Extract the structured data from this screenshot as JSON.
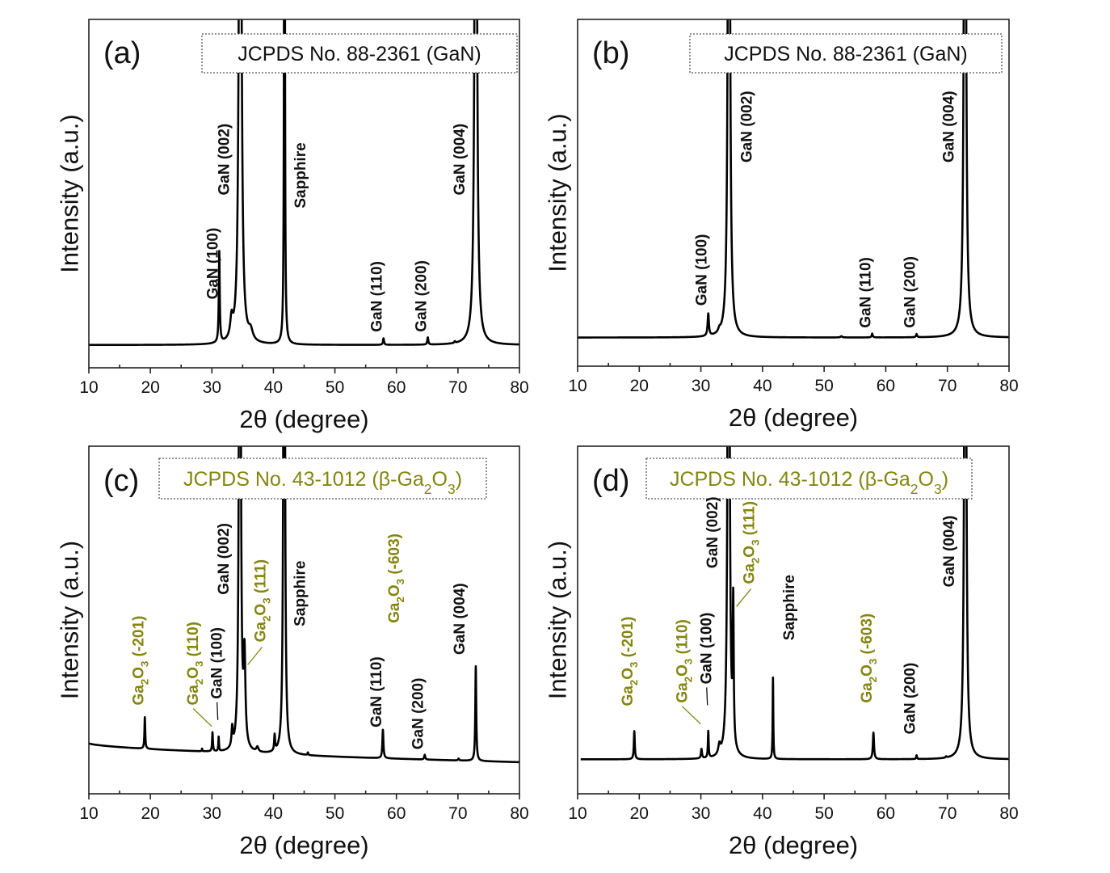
{
  "figure": {
    "colors": {
      "gan": "#111111",
      "ga2o3": "#858510",
      "axis": "#222222"
    },
    "xlabel": "2θ (degree)",
    "ylabel": "Intensity (a.u.)"
  },
  "chart_data": [
    {
      "type": "line",
      "panel": "(a)",
      "title": "",
      "reference": {
        "text": "JCPDS No. 88-2361 (GaN)",
        "color_key": "gan"
      },
      "xlabel": "2θ (degree)",
      "ylabel": "Intensity (a.u.)",
      "xlim": [
        10,
        80
      ],
      "xticks": [
        10,
        20,
        30,
        40,
        50,
        60,
        70,
        80
      ],
      "minor_xticks": [
        15,
        25,
        35,
        45,
        55,
        65,
        75
      ],
      "ylim": [
        -0.07,
        1.0
      ],
      "y_ticks_shown": false,
      "baseline": {
        "start": 0,
        "end": 0
      },
      "peaks": [
        {
          "x": 31.2,
          "height": 0.28,
          "width": 0.18
        },
        {
          "x": 33.2,
          "height": 0.06,
          "width": 0.5
        },
        {
          "x": 34.6,
          "height": 3.0,
          "width": 0.35
        },
        {
          "x": 36.3,
          "height": 0.03,
          "width": 0.8
        },
        {
          "x": 41.8,
          "height": 3.0,
          "width": 0.12
        },
        {
          "x": 57.9,
          "height": 0.02,
          "width": 0.2
        },
        {
          "x": 65.1,
          "height": 0.022,
          "width": 0.2
        },
        {
          "x": 69.5,
          "height": 0.005,
          "width": 0.2
        },
        {
          "x": 72.9,
          "height": 3.0,
          "width": 0.33
        }
      ],
      "annotations": [
        {
          "text": "GaN (100)",
          "x": 31.2,
          "color_key": "gan",
          "label_y": 0.14
        },
        {
          "text": "GaN (002)",
          "x": 34.6,
          "color_key": "gan",
          "label_y": 0.46
        },
        {
          "text": "Sapphire",
          "x": 41.8,
          "color_key": "gan",
          "label_y": 0.42
        },
        {
          "text": "GaN (110)",
          "x": 57.9,
          "color_key": "gan",
          "label_y": 0.04
        },
        {
          "text": "GaN (200)",
          "x": 65.1,
          "color_key": "gan",
          "label_y": 0.04
        },
        {
          "text": "GaN (004)",
          "x": 72.9,
          "color_key": "gan",
          "label_y": 0.46
        }
      ]
    },
    {
      "type": "line",
      "panel": "(b)",
      "title": "",
      "reference": {
        "text": "JCPDS No. 88-2361 (GaN)",
        "color_key": "gan"
      },
      "xlabel": "2θ (degree)",
      "ylabel": "Intensity (a.u.)",
      "xlim": [
        10,
        80
      ],
      "xticks": [
        10,
        20,
        30,
        40,
        50,
        60,
        70,
        80
      ],
      "minor_xticks": [
        15,
        25,
        35,
        45,
        55,
        65,
        75
      ],
      "ylim": [
        -0.09,
        1.0
      ],
      "y_ticks_shown": false,
      "baseline": {
        "start": 0,
        "end": 0
      },
      "peaks": [
        {
          "x": 31.2,
          "height": 0.07,
          "width": 0.25
        },
        {
          "x": 33.0,
          "height": 0.01,
          "width": 0.4
        },
        {
          "x": 34.55,
          "height": 3.0,
          "width": 0.3
        },
        {
          "x": 52.8,
          "height": 0.004,
          "width": 0.3
        },
        {
          "x": 57.8,
          "height": 0.012,
          "width": 0.2
        },
        {
          "x": 65.0,
          "height": 0.01,
          "width": 0.2
        },
        {
          "x": 72.85,
          "height": 3.0,
          "width": 0.3
        }
      ],
      "annotations": [
        {
          "text": "GaN (100)",
          "x": 31.2,
          "color_key": "gan",
          "label_y": 0.1
        },
        {
          "text": "GaN (002)",
          "x": 34.55,
          "color_key": "gan",
          "label_y": 0.55
        },
        {
          "text": "GaN (110)",
          "x": 57.8,
          "color_key": "gan",
          "label_y": 0.03
        },
        {
          "text": "GaN (200)",
          "x": 65.0,
          "color_key": "gan",
          "label_y": 0.03
        },
        {
          "text": "GaN (004)",
          "x": 72.85,
          "color_key": "gan",
          "label_y": 0.55
        }
      ]
    },
    {
      "type": "line",
      "panel": "(c)",
      "title": "",
      "reference": {
        "text": "JCPDS No. 43-1012 (β-Ga2O3)",
        "color_key": "ga2o3"
      },
      "xlabel": "2θ (degree)",
      "ylabel": "Intensity (a.u.)",
      "xlim": [
        10,
        80
      ],
      "xticks": [
        10,
        20,
        30,
        40,
        50,
        60,
        70,
        80
      ],
      "minor_xticks": [
        15,
        25,
        35,
        45,
        55,
        65,
        75
      ],
      "ylim": [
        -0.1,
        1.0
      ],
      "y_ticks_shown": false,
      "baseline": {
        "start": 0.06,
        "end": 0
      },
      "peaks": [
        {
          "x": 19.1,
          "height": 0.1,
          "width": 0.15
        },
        {
          "x": 28.4,
          "height": 0.008,
          "width": 0.1
        },
        {
          "x": 30.1,
          "height": 0.06,
          "width": 0.15
        },
        {
          "x": 31.1,
          "height": 0.045,
          "width": 0.12
        },
        {
          "x": 33.3,
          "height": 0.06,
          "width": 0.25
        },
        {
          "x": 34.55,
          "height": 3.0,
          "width": 0.25
        },
        {
          "x": 35.3,
          "height": 0.28,
          "width": 0.35
        },
        {
          "x": 37.4,
          "height": 0.015,
          "width": 0.4
        },
        {
          "x": 40.2,
          "height": 0.05,
          "width": 0.18
        },
        {
          "x": 41.75,
          "height": 3.0,
          "width": 0.22
        },
        {
          "x": 45.6,
          "height": 0.008,
          "width": 0.15
        },
        {
          "x": 57.8,
          "height": 0.09,
          "width": 0.2
        },
        {
          "x": 64.6,
          "height": 0.015,
          "width": 0.2
        },
        {
          "x": 70.1,
          "height": 0.006,
          "width": 0.2
        },
        {
          "x": 72.9,
          "height": 0.3,
          "width": 0.18
        }
      ],
      "annotations": [
        {
          "text": "Ga2O3 (-201)",
          "x": 19.1,
          "color_key": "ga2o3",
          "label_y": 0.18
        },
        {
          "text": "Ga2O3 (110)",
          "x": 30.1,
          "color_key": "ga2o3",
          "label_y": 0.18,
          "leader": true
        },
        {
          "text": "GaN (100)",
          "x": 31.1,
          "color_key": "gan",
          "label_y": 0.2,
          "leader": true
        },
        {
          "text": "GaN (002)",
          "x": 34.55,
          "color_key": "gan",
          "label_y": 0.53
        },
        {
          "text": "Ga2O3 (111)",
          "x": 35.3,
          "color_key": "ga2o3",
          "label_y": 0.38,
          "leader": true
        },
        {
          "text": "Sapphire",
          "x": 41.75,
          "color_key": "gan",
          "label_y": 0.43
        },
        {
          "text": "GaN (110)",
          "x": 57.8,
          "color_key": "gan",
          "label_y": 0.11
        },
        {
          "text": "Ga2O3 (-603)",
          "x": 57.8,
          "color_key": "ga2o3",
          "label_y": 0.44
        },
        {
          "text": "GaN (200)",
          "x": 64.6,
          "color_key": "gan",
          "label_y": 0.04
        },
        {
          "text": "GaN (004)",
          "x": 72.9,
          "color_key": "gan",
          "label_y": 0.34
        }
      ]
    },
    {
      "type": "line",
      "panel": "(d)",
      "title": "",
      "reference": {
        "text": "JCPDS No. 43-1012 (β-Ga2O3)",
        "color_key": "ga2o3"
      },
      "xlabel": "2θ (degree)",
      "ylabel": "Intensity (a.u.)",
      "xlim": [
        10,
        80
      ],
      "xticks": [
        10,
        20,
        30,
        40,
        50,
        60,
        70,
        80
      ],
      "minor_xticks": [
        15,
        25,
        35,
        45,
        55,
        65,
        75
      ],
      "ylim": [
        -0.11,
        1.0
      ],
      "y_ticks_shown": false,
      "x_data_start": 10.5,
      "baseline": {
        "start": 0,
        "end": 0
      },
      "peaks": [
        {
          "x": 19.2,
          "height": 0.09,
          "width": 0.18
        },
        {
          "x": 30.1,
          "height": 0.03,
          "width": 0.2
        },
        {
          "x": 31.2,
          "height": 0.085,
          "width": 0.15
        },
        {
          "x": 33.0,
          "height": 0.03,
          "width": 0.4
        },
        {
          "x": 34.5,
          "height": 3.0,
          "width": 0.28
        },
        {
          "x": 35.25,
          "height": 0.45,
          "width": 0.18
        },
        {
          "x": 41.7,
          "height": 0.26,
          "width": 0.12
        },
        {
          "x": 58.0,
          "height": 0.085,
          "width": 0.22
        },
        {
          "x": 65.0,
          "height": 0.012,
          "width": 0.15
        },
        {
          "x": 69.8,
          "height": 0.004,
          "width": 0.2
        },
        {
          "x": 72.9,
          "height": 3.0,
          "width": 0.28
        }
      ],
      "annotations": [
        {
          "text": "Ga2O3 (-201)",
          "x": 19.2,
          "color_key": "ga2o3",
          "label_y": 0.17
        },
        {
          "text": "Ga2O3 (110)",
          "x": 30.1,
          "color_key": "ga2o3",
          "label_y": 0.18,
          "leader": true
        },
        {
          "text": "GaN (100)",
          "x": 31.2,
          "color_key": "gan",
          "label_y": 0.24,
          "leader": true
        },
        {
          "text": "GaN (002)",
          "x": 34.5,
          "color_key": "gan",
          "label_y": 0.61
        },
        {
          "text": "Ga2O3 (111)",
          "x": 35.25,
          "color_key": "ga2o3",
          "label_y": 0.56,
          "leader": true
        },
        {
          "text": "Sapphire",
          "x": 41.7,
          "color_key": "gan",
          "label_y": 0.38
        },
        {
          "text": "Ga2O3 (-603)",
          "x": 58.0,
          "color_key": "ga2o3",
          "label_y": 0.18
        },
        {
          "text": "GaN (200)",
          "x": 65.0,
          "color_key": "gan",
          "label_y": 0.08
        },
        {
          "text": "GaN (004)",
          "x": 72.9,
          "color_key": "gan",
          "label_y": 0.55
        }
      ]
    }
  ]
}
